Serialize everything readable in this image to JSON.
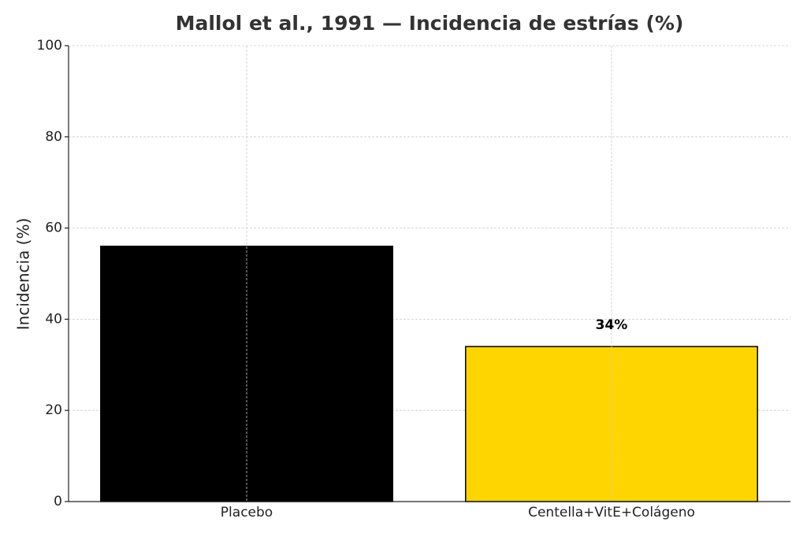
{
  "chart_data": {
    "type": "bar",
    "title": "Mallol et al., 1991 — Incidencia de estrías (%)",
    "y_label": "Incidencia (%)",
    "categories": [
      "Placebo",
      "Centella+VitE+Colágeno"
    ],
    "values": [
      56,
      34
    ],
    "value_labels": [
      null,
      "34%"
    ],
    "colors": [
      "#000000",
      "#ffd500"
    ],
    "edge_color": "#000000",
    "ylim": [
      0,
      100
    ],
    "yticks": [
      0,
      20,
      40,
      60,
      80,
      100
    ],
    "grid": true
  }
}
